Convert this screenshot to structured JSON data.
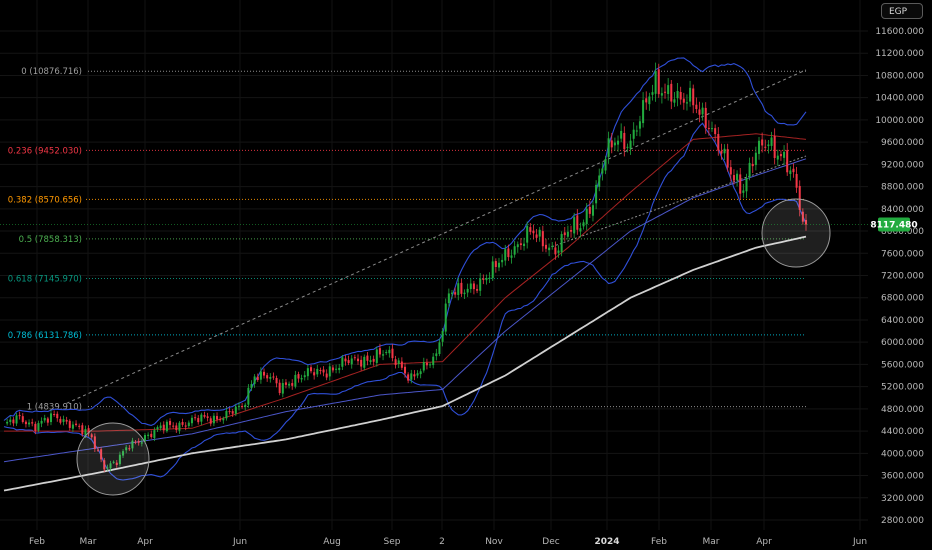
{
  "header": {
    "currency": "EGP"
  },
  "chart_data": {
    "type": "candlestick",
    "y_axis": {
      "ticks": [
        "11600.000",
        "11200.000",
        "10800.000",
        "10400.000",
        "10000.000",
        "9600.000",
        "9200.000",
        "8800.000",
        "8400.000",
        "8000.000",
        "7600.000",
        "7200.000",
        "6800.000",
        "6400.000",
        "6000.000",
        "5600.000",
        "5200.000",
        "4800.000",
        "4400.000",
        "4000.000",
        "3600.000",
        "3200.000",
        "2800.000"
      ],
      "ylim": [
        2600,
        12000
      ]
    },
    "x_axis": {
      "ticks": [
        {
          "label": "Feb",
          "bold": false
        },
        {
          "label": "Mar",
          "bold": false
        },
        {
          "label": "Apr",
          "bold": false
        },
        {
          "label": "Jun",
          "bold": false
        },
        {
          "label": "Aug",
          "bold": false
        },
        {
          "label": "Sep",
          "bold": false
        },
        {
          "label": "2",
          "bold": false
        },
        {
          "label": "Nov",
          "bold": false
        },
        {
          "label": "Dec",
          "bold": false
        },
        {
          "label": "2024",
          "bold": true
        },
        {
          "label": "Feb",
          "bold": false
        },
        {
          "label": "Mar",
          "bold": false
        },
        {
          "label": "Apr",
          "bold": false
        },
        {
          "label": "Jun",
          "bold": false
        }
      ]
    },
    "fib_levels": [
      {
        "label": "0 (10876.716)",
        "ratio": 0,
        "price": 10876.716,
        "color": "#9e9e9e"
      },
      {
        "label": "0.236 (9452.030)",
        "ratio": 0.236,
        "price": 9452.03,
        "color": "#f23645"
      },
      {
        "label": "0.382 (8570.656)",
        "ratio": 0.382,
        "price": 8570.656,
        "color": "#ff9800"
      },
      {
        "label": "0.5 (7858.313)",
        "ratio": 0.5,
        "price": 7858.313,
        "color": "#4caf50"
      },
      {
        "label": "0.618 (7145.970)",
        "ratio": 0.618,
        "price": 7145.97,
        "color": "#089981"
      },
      {
        "label": "0.786 (6131.786)",
        "ratio": 0.786,
        "price": 6131.786,
        "color": "#00bcd4"
      },
      {
        "label": "1 (4839.910)",
        "ratio": 1,
        "price": 4839.91,
        "color": "#9e9e9e"
      }
    ],
    "last_price": {
      "label": "8117.480",
      "value": 8117.48,
      "color": "#22ab3f"
    },
    "series_keypoints": {
      "close": [
        [
          0,
          4500
        ],
        [
          5,
          4620
        ],
        [
          10,
          4520
        ],
        [
          16,
          4640
        ],
        [
          22,
          4550
        ],
        [
          28,
          4250
        ],
        [
          32,
          3780
        ],
        [
          36,
          3850
        ],
        [
          40,
          4120
        ],
        [
          45,
          4320
        ],
        [
          52,
          4480
        ],
        [
          60,
          4580
        ],
        [
          68,
          4650
        ],
        [
          76,
          4800
        ],
        [
          80,
          5450
        ],
        [
          84,
          5380
        ],
        [
          88,
          5150
        ],
        [
          92,
          5350
        ],
        [
          100,
          5450
        ],
        [
          108,
          5600
        ],
        [
          116,
          5720
        ],
        [
          122,
          5780
        ],
        [
          126,
          5650
        ],
        [
          130,
          5350
        ],
        [
          134,
          5500
        ],
        [
          138,
          5800
        ],
        [
          142,
          6900
        ],
        [
          146,
          6850
        ],
        [
          150,
          7050
        ],
        [
          156,
          7250
        ],
        [
          162,
          7700
        ],
        [
          168,
          7950
        ],
        [
          172,
          7800
        ],
        [
          176,
          7700
        ],
        [
          180,
          7950
        ],
        [
          184,
          8100
        ],
        [
          188,
          8600
        ],
        [
          192,
          9300
        ],
        [
          196,
          9700
        ],
        [
          200,
          9650
        ],
        [
          204,
          10100
        ],
        [
          208,
          10700
        ],
        [
          212,
          10550
        ],
        [
          216,
          10250
        ],
        [
          220,
          10400
        ],
        [
          224,
          10050
        ],
        [
          228,
          9450
        ],
        [
          232,
          9100
        ],
        [
          236,
          8800
        ],
        [
          240,
          9350
        ],
        [
          244,
          9650
        ],
        [
          248,
          9400
        ],
        [
          252,
          8900
        ],
        [
          255,
          8200
        ],
        [
          256,
          8117
        ]
      ],
      "ma_long": [
        [
          0,
          3330
        ],
        [
          30,
          3650
        ],
        [
          60,
          4000
        ],
        [
          90,
          4250
        ],
        [
          120,
          4600
        ],
        [
          140,
          4850
        ],
        [
          160,
          5400
        ],
        [
          180,
          6100
        ],
        [
          200,
          6800
        ],
        [
          220,
          7300
        ],
        [
          240,
          7700
        ],
        [
          256,
          7900
        ]
      ],
      "ma_mid": [
        [
          0,
          3850
        ],
        [
          30,
          4100
        ],
        [
          60,
          4350
        ],
        [
          90,
          4750
        ],
        [
          120,
          5050
        ],
        [
          140,
          5150
        ],
        [
          160,
          6200
        ],
        [
          180,
          7100
        ],
        [
          200,
          8000
        ],
        [
          220,
          8600
        ],
        [
          240,
          9000
        ],
        [
          256,
          9300
        ]
      ],
      "ema_red": [
        [
          0,
          4400
        ],
        [
          30,
          4400
        ],
        [
          60,
          4450
        ],
        [
          90,
          5000
        ],
        [
          120,
          5600
        ],
        [
          140,
          5650
        ],
        [
          160,
          6800
        ],
        [
          180,
          7700
        ],
        [
          200,
          8700
        ],
        [
          220,
          9650
        ],
        [
          240,
          9750
        ],
        [
          256,
          9650
        ]
      ]
    },
    "annotations": [
      {
        "type": "circle",
        "at_price": 3850,
        "note": "highlight"
      },
      {
        "type": "circle",
        "at_price": 8000,
        "note": "highlight"
      }
    ]
  }
}
